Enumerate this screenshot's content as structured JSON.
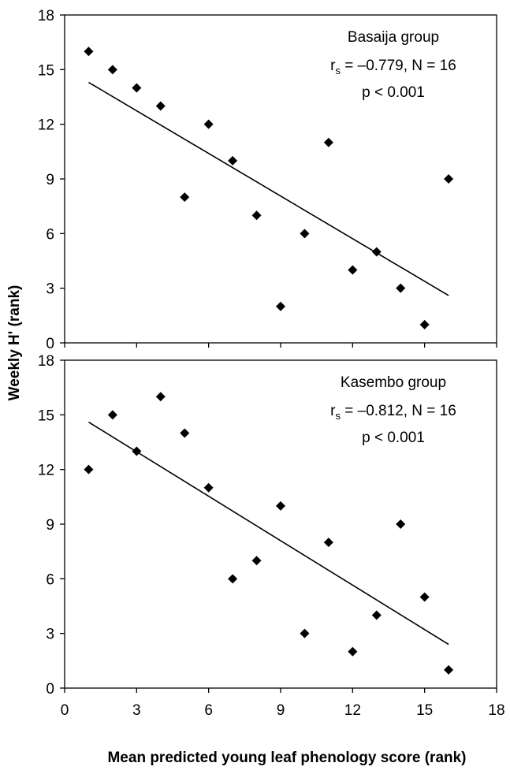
{
  "ylabel": "Weekly H' (rank)",
  "xlabel": "Mean predicted young leaf phenology score (rank)",
  "chart_data": [
    {
      "type": "scatter",
      "title": "Basaija group",
      "annotation_lines": [
        "r_s = –0.779, N = 16",
        "p < 0.001"
      ],
      "stat": {
        "r_prefix": "r",
        "r_sub": "s",
        "r_rest": " = –0.779, N = 16",
        "p_line": "p < 0.001"
      },
      "xlim": [
        0,
        18
      ],
      "ylim": [
        0,
        18
      ],
      "xticks": [
        0,
        3,
        6,
        9,
        12,
        15,
        18
      ],
      "yticks": [
        0,
        3,
        6,
        9,
        12,
        15,
        18
      ],
      "x_tick_labels_shown": false,
      "points": [
        [
          1,
          16
        ],
        [
          2,
          15
        ],
        [
          3,
          14
        ],
        [
          4,
          13
        ],
        [
          5,
          8
        ],
        [
          6,
          12
        ],
        [
          7,
          10
        ],
        [
          8,
          7
        ],
        [
          9,
          2
        ],
        [
          10,
          6
        ],
        [
          11,
          11
        ],
        [
          12,
          4
        ],
        [
          13,
          5
        ],
        [
          14,
          3
        ],
        [
          15,
          1
        ],
        [
          16,
          9
        ]
      ],
      "trendline": [
        [
          1,
          14.3
        ],
        [
          16,
          2.6
        ]
      ]
    },
    {
      "type": "scatter",
      "title": "Kasembo group",
      "annotation_lines": [
        "r_s = –0.812, N = 16",
        "p < 0.001"
      ],
      "stat": {
        "r_prefix": "r",
        "r_sub": "s",
        "r_rest": " = –0.812, N = 16",
        "p_line": "p < 0.001"
      },
      "xlim": [
        0,
        18
      ],
      "ylim": [
        0,
        18
      ],
      "xticks": [
        0,
        3,
        6,
        9,
        12,
        15,
        18
      ],
      "yticks": [
        0,
        3,
        6,
        9,
        12,
        15,
        18
      ],
      "x_tick_labels_shown": true,
      "points": [
        [
          1,
          12
        ],
        [
          2,
          15
        ],
        [
          3,
          13
        ],
        [
          4,
          16
        ],
        [
          5,
          14
        ],
        [
          6,
          11
        ],
        [
          7,
          6
        ],
        [
          8,
          7
        ],
        [
          9,
          10
        ],
        [
          10,
          3
        ],
        [
          11,
          8
        ],
        [
          12,
          2
        ],
        [
          13,
          4
        ],
        [
          14,
          9
        ],
        [
          15,
          5
        ],
        [
          16,
          1
        ]
      ],
      "trendline": [
        [
          1,
          14.6
        ],
        [
          16,
          2.4
        ]
      ]
    }
  ]
}
